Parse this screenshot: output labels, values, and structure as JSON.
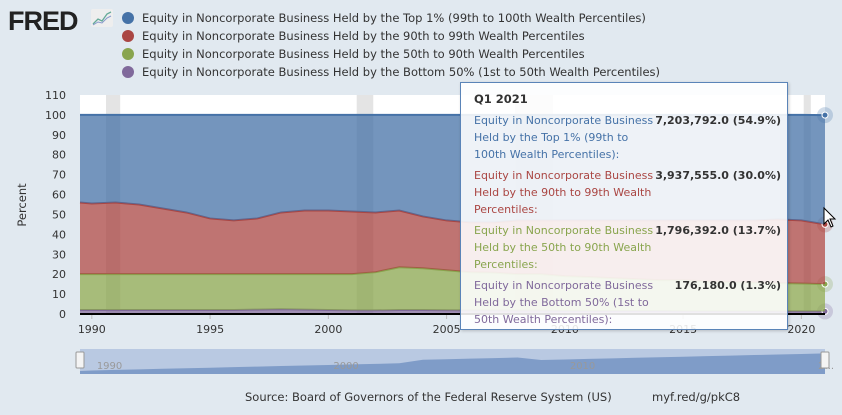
{
  "logo": "FRED",
  "colors": {
    "top1": "#4572a7",
    "p90_99": "#aa4643",
    "p50_90": "#89a54e",
    "bottom50": "#80699b"
  },
  "chart_data": {
    "type": "area",
    "stacking": "percent",
    "ylabel": "Percent",
    "ylim": [
      0,
      110
    ],
    "yticks": [
      "0",
      "10",
      "20",
      "30",
      "40",
      "50",
      "60",
      "70",
      "80",
      "90",
      "100",
      "110"
    ],
    "xticks": [
      "1990",
      "1995",
      "2000",
      "2005",
      "2010",
      "2015",
      "2020"
    ],
    "x": [
      1989.5,
      1990,
      1991,
      1992,
      1993,
      1994,
      1995,
      1996,
      1997,
      1998,
      1999,
      2000,
      2001,
      2002,
      2003,
      2004,
      2005,
      2006,
      2007,
      2008,
      2009,
      2010,
      2011,
      2012,
      2013,
      2014,
      2015,
      2016,
      2017,
      2018,
      2019,
      2020,
      2021
    ],
    "series": [
      {
        "name": "Equity in Noncorporate Business Held by the Bottom 50% (1st to 50th Wealth Percentiles)",
        "values": [
          2,
          2,
          2,
          2,
          2,
          2,
          2,
          2,
          2.2,
          2.4,
          2.2,
          2,
          1.8,
          1.8,
          2,
          2,
          1.9,
          1.8,
          1.8,
          1.7,
          1.7,
          1.6,
          1.6,
          1.5,
          1.5,
          1.5,
          1.4,
          1.4,
          1.4,
          1.4,
          1.3,
          1.3,
          1.3
        ]
      },
      {
        "name": "Equity in Noncorporate Business Held by the 50th to 90th Wealth Percentiles",
        "values": [
          18,
          18,
          18,
          18,
          18,
          18,
          18,
          18,
          17.8,
          17.6,
          17.8,
          18,
          18.2,
          19.2,
          21.5,
          21,
          20.1,
          19.2,
          19,
          18.3,
          18.3,
          17.4,
          17,
          16.5,
          16,
          15.5,
          15.6,
          15,
          14.6,
          14.4,
          14.2,
          14,
          13.7
        ]
      },
      {
        "name": "Equity in Noncorporate Business Held by the 90th to 99th Wealth Percentiles",
        "values": [
          36,
          35.5,
          36,
          35,
          33,
          31,
          28,
          27,
          28,
          31,
          32,
          32,
          31.5,
          30,
          28.5,
          26,
          25,
          25,
          25.2,
          27,
          27,
          28,
          28.4,
          29,
          29.5,
          30,
          30,
          30.6,
          31,
          31.2,
          32,
          31.7,
          30.0
        ]
      },
      {
        "name": "Equity in Noncorporate Business Held by the Top 1% (99th to 100th Wealth Percentiles)",
        "values": [
          44,
          44.5,
          44,
          45,
          47,
          49,
          52,
          53,
          52,
          49,
          48,
          48,
          48.5,
          49,
          48,
          51,
          53,
          54,
          54,
          53,
          53,
          53,
          53,
          53,
          53,
          53,
          53,
          53,
          53,
          53,
          52.5,
          53,
          54.9
        ]
      }
    ],
    "recessions": [
      [
        1990.6,
        1991.2
      ],
      [
        2001.2,
        2001.9
      ],
      [
        2007.9,
        2009.5
      ],
      [
        2020.1,
        2020.4
      ]
    ],
    "navigator_labels": [
      "1990",
      "2000",
      "2010",
      "2..."
    ]
  },
  "tooltip": {
    "date": "Q1 2021",
    "rows": [
      {
        "name": "Equity in Noncorporate Business Held by the Top 1% (99th to 100th Wealth Percentiles):",
        "value": "7,203,792.0 (54.9%)"
      },
      {
        "name": "Equity in Noncorporate Business Held by the 90th to 99th Wealth Percentiles:",
        "value": "3,937,555.0 (30.0%)"
      },
      {
        "name": "Equity in Noncorporate Business Held by the 50th to 90th Wealth Percentiles:",
        "value": "1,796,392.0 (13.7%)"
      },
      {
        "name": "Equity in Noncorporate Business Held by the Bottom 50% (1st to 50th Wealth Percentiles):",
        "value": "176,180.0 (1.3%)"
      }
    ]
  },
  "footer": {
    "source": "Source: Board of Governors of the Federal Reserve System (US)",
    "url": "myf.red/g/pkC8"
  }
}
